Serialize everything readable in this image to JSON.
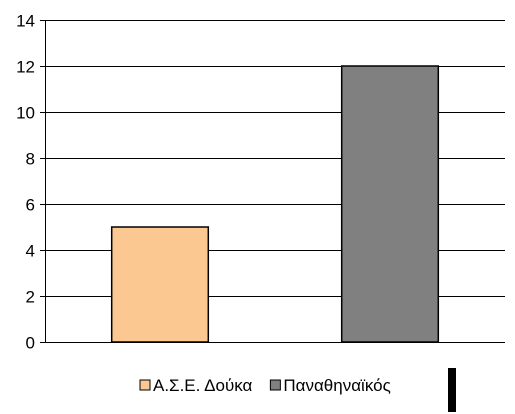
{
  "chart_data": {
    "type": "bar",
    "ylim": [
      0,
      14
    ],
    "yticks": [
      0,
      2,
      4,
      6,
      8,
      10,
      12,
      14
    ],
    "grid": true,
    "legend_position": "bottom",
    "series": [
      {
        "name": "Α.Σ.Ε. Δούκα",
        "value": 5,
        "color": "#fac890"
      },
      {
        "name": "Παναθηναϊκός",
        "value": 12,
        "color": "#808080"
      }
    ]
  }
}
